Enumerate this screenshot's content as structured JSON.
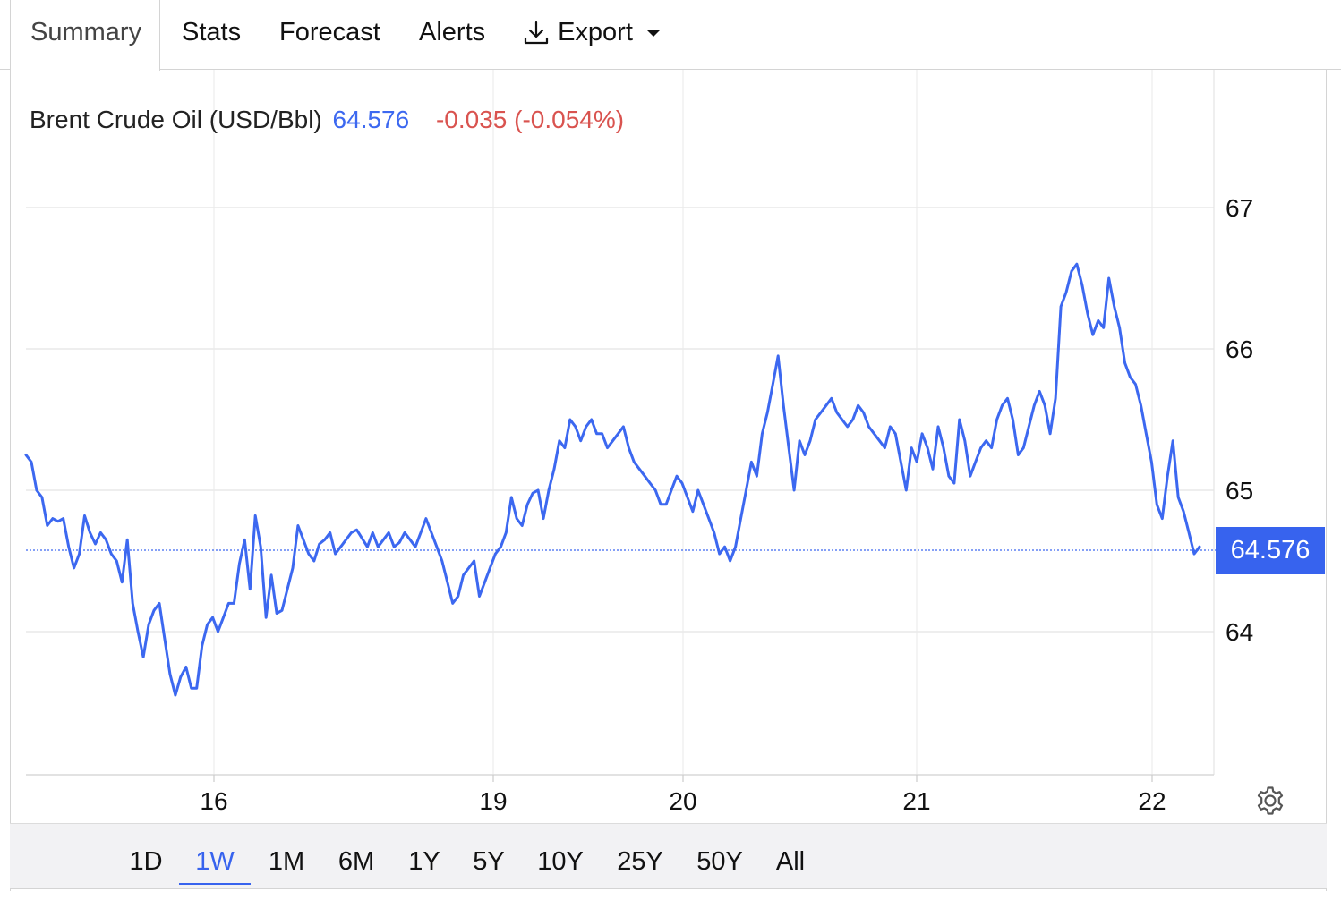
{
  "tabs": [
    {
      "label": "Summary",
      "active": true
    },
    {
      "label": "Stats"
    },
    {
      "label": "Forecast"
    },
    {
      "label": "Alerts"
    },
    {
      "label": "Export",
      "icon": "download-icon",
      "dropdown": true
    }
  ],
  "legend": {
    "name": "Brent Crude Oil (USD/Bbl)",
    "price": "64.576",
    "change": "-0.035 (-0.054%)"
  },
  "price_tag": "64.576",
  "ranges": [
    {
      "label": "1D"
    },
    {
      "label": "1W",
      "active": true
    },
    {
      "label": "1M"
    },
    {
      "label": "6M"
    },
    {
      "label": "1Y"
    },
    {
      "label": "5Y"
    },
    {
      "label": "10Y"
    },
    {
      "label": "25Y"
    },
    {
      "label": "50Y"
    },
    {
      "label": "All"
    }
  ],
  "colors": {
    "line": "#3c68f0",
    "accent": "#3763ee",
    "negative": "#d9534f"
  },
  "settings_icon": "gear-icon",
  "chart_data": {
    "type": "line",
    "ylim": [
      63.0,
      67.5
    ],
    "y_ticks": [
      "67",
      "66",
      "65",
      "64"
    ],
    "x_ticks": [
      "16",
      "19",
      "20",
      "21",
      "22"
    ],
    "last_value": 64.576,
    "grid": true,
    "series": [
      {
        "y": [
          65.25,
          65.2,
          65.0,
          64.95,
          64.75,
          64.8,
          64.78,
          64.8,
          64.6,
          64.45,
          64.55,
          64.82,
          64.7,
          64.62,
          64.7,
          64.65,
          64.55,
          64.5,
          64.35,
          64.65,
          64.2,
          64.0,
          63.82,
          64.05,
          64.15,
          64.2,
          63.95,
          63.7,
          63.55,
          63.68,
          63.75,
          63.6,
          63.6,
          63.9,
          64.05,
          64.1,
          64.0,
          64.1,
          64.2,
          64.2,
          64.48,
          64.65,
          64.3,
          64.82,
          64.6,
          64.1,
          64.4,
          64.13,
          64.15,
          64.3,
          64.45,
          64.75,
          64.65,
          64.55,
          64.5,
          64.62,
          64.65,
          64.7,
          64.55,
          64.6,
          64.65,
          64.7,
          64.72,
          64.66,
          64.6,
          64.7,
          64.6,
          64.65,
          64.7,
          64.6,
          64.63,
          64.7,
          64.65,
          64.6,
          64.7,
          64.8,
          64.7,
          64.6,
          64.5,
          64.35,
          64.2,
          64.25,
          64.4,
          64.45,
          64.5,
          64.25,
          64.35,
          64.45,
          64.55,
          64.6,
          64.7,
          64.95,
          64.8,
          64.75,
          64.9,
          64.98,
          65.0,
          64.8,
          65.0,
          65.15,
          65.35,
          65.3,
          65.5,
          65.45,
          65.35,
          65.45,
          65.5,
          65.4,
          65.4,
          65.3,
          65.35,
          65.4,
          65.45,
          65.3,
          65.2,
          65.15,
          65.1,
          65.05,
          65.0,
          64.9,
          64.9,
          65.0,
          65.1,
          65.05,
          64.95,
          64.85,
          65.0,
          64.9,
          64.8,
          64.7,
          64.55,
          64.6,
          64.5,
          64.6,
          64.8,
          65.0,
          65.2,
          65.1,
          65.4,
          65.55,
          65.75,
          65.95,
          65.6,
          65.3,
          65.0,
          65.35,
          65.25,
          65.35,
          65.5,
          65.55,
          65.6,
          65.65,
          65.55,
          65.5,
          65.45,
          65.5,
          65.6,
          65.55,
          65.45,
          65.4,
          65.35,
          65.3,
          65.45,
          65.4,
          65.2,
          65.0,
          65.3,
          65.2,
          65.4,
          65.3,
          65.15,
          65.45,
          65.3,
          65.1,
          65.05,
          65.5,
          65.35,
          65.1,
          65.2,
          65.3,
          65.35,
          65.3,
          65.5,
          65.6,
          65.65,
          65.5,
          65.25,
          65.3,
          65.45,
          65.6,
          65.7,
          65.6,
          65.4,
          65.65,
          66.3,
          66.4,
          66.55,
          66.6,
          66.45,
          66.25,
          66.1,
          66.2,
          66.15,
          66.5,
          66.3,
          66.15,
          65.9,
          65.8,
          65.75,
          65.6,
          65.4,
          65.2,
          64.9,
          64.8,
          65.1,
          65.35,
          64.95,
          64.85,
          64.7,
          64.55,
          64.6
        ]
      }
    ]
  }
}
